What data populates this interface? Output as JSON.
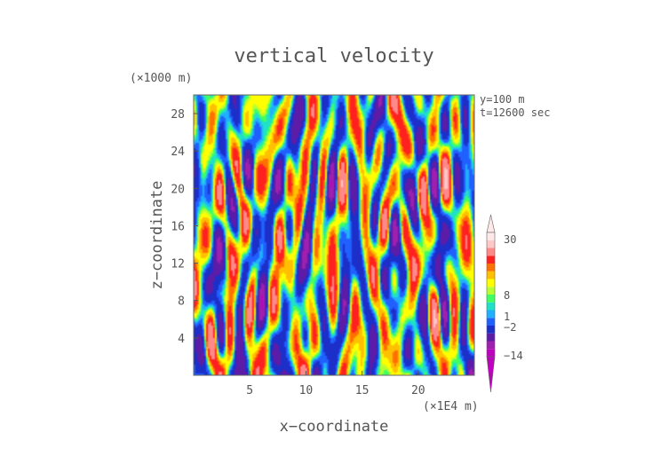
{
  "chart_data": {
    "type": "heatmap",
    "title": "vertical velocity",
    "xlabel": "x−coordinate",
    "ylabel": "z−coordinate",
    "x_unit": "(×1E4 m)",
    "y_unit": "(×1000 m)",
    "annotations": [
      "y=100  m",
      "t=12600 sec"
    ],
    "xlim": [
      0,
      25
    ],
    "ylim": [
      0,
      30
    ],
    "x_ticks": [
      5,
      10,
      15,
      20
    ],
    "y_ticks": [
      4,
      8,
      12,
      16,
      20,
      24,
      28
    ],
    "colorbar": {
      "tick_labels": [
        "30",
        "8",
        "1",
        "−2",
        "−14"
      ],
      "levels": [
        -20,
        -14,
        -8,
        -4,
        -2,
        -1,
        0,
        1,
        2,
        4,
        6,
        8,
        12,
        20,
        30
      ],
      "colors": [
        "#bf00bf",
        "#9f1faf",
        "#5c1ca8",
        "#1c2fc8",
        "#2060ff",
        "#20b0ff",
        "#20e0c8",
        "#40ff60",
        "#b8ff30",
        "#ffff00",
        "#ffc000",
        "#ff7000",
        "#ff2020",
        "#ff8888",
        "#ffc8c8",
        "#ffe8e8"
      ]
    }
  }
}
